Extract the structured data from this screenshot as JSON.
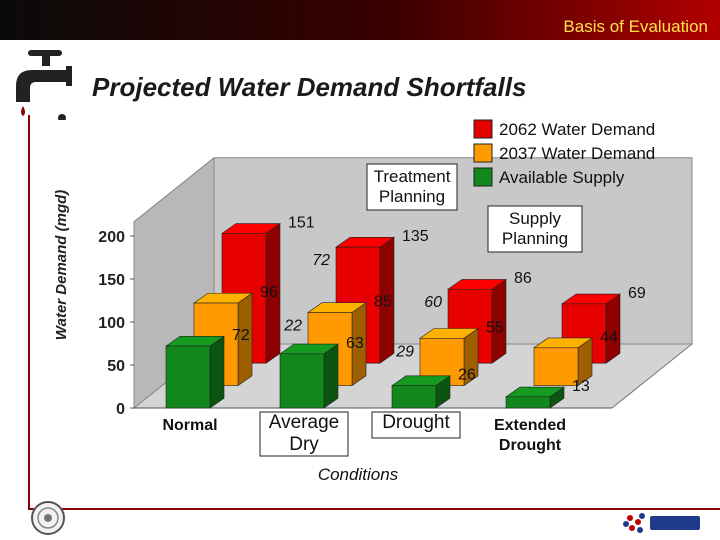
{
  "header": {
    "title": "Basis of Evaluation"
  },
  "slide": {
    "title": "Projected Water Demand Shortfalls"
  },
  "icons": {
    "tap": "faucet-icon",
    "seal": "agency-seal-icon",
    "logo": "company-logo-icon"
  },
  "colors": {
    "s2062": "#e60000",
    "s2037": "#ff9a00",
    "supply": "#12881c",
    "accent": "#b10000"
  },
  "chart_data": {
    "type": "bar",
    "ylabel": "Water Demand (mgd)",
    "xlabel": "Conditions",
    "yticks": [
      0,
      50,
      100,
      150,
      200
    ],
    "ylim": [
      0,
      200
    ],
    "categories": [
      "Normal",
      "Average Dry",
      "Drought",
      "Extended Drought"
    ],
    "series": [
      {
        "name": "Available Supply",
        "values": [
          72,
          63,
          26,
          13
        ],
        "labels": [
          "72",
          "63",
          "26",
          "13"
        ]
      },
      {
        "name": "2037 Water Demand",
        "values": [
          96,
          85,
          55,
          44
        ],
        "labels": [
          "96",
          "85",
          "55",
          "44"
        ]
      },
      {
        "name": "2062 Water Demand",
        "values": [
          151,
          135,
          86,
          69
        ],
        "labels": [
          "151",
          "135",
          "86",
          "69"
        ]
      }
    ],
    "shortfall_labels": [
      {
        "category": "Average Dry",
        "series": "2037 Water Demand",
        "text": "22"
      },
      {
        "category": "Average Dry",
        "series": "2062 Water Demand",
        "text": "72"
      },
      {
        "category": "Drought",
        "series": "2037 Water Demand",
        "text": "29"
      },
      {
        "category": "Drought",
        "series": "2062 Water Demand",
        "text": "60"
      }
    ],
    "annotations": [
      {
        "text": "Treatment\nPlanning",
        "near": "Average Dry / Drought"
      },
      {
        "text": "Supply\nPlanning",
        "near": "Drought / Extended Drought"
      }
    ],
    "legend": [
      "2062 Water Demand",
      "2037 Water Demand",
      "Available Supply"
    ],
    "legend_position": "top-right",
    "grid": false
  }
}
